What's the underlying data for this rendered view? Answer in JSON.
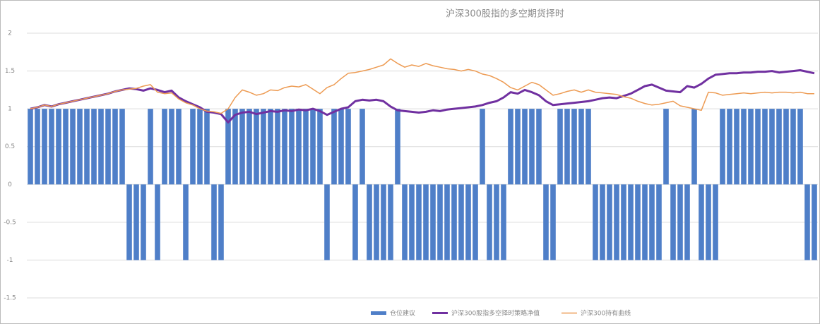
{
  "chart_data": {
    "type": "bar_line",
    "title": "沪深300股指的多空期货择时",
    "categories": [
      null,
      null,
      null,
      null,
      null,
      null,
      null,
      null,
      null,
      null,
      null,
      null,
      null,
      null,
      null,
      null,
      null,
      null,
      null,
      null,
      null,
      null,
      null,
      null,
      null,
      null,
      null,
      null,
      null,
      null,
      null,
      null,
      null,
      null,
      null,
      null,
      null,
      null,
      null,
      null,
      null,
      null,
      null,
      null,
      null,
      null,
      null,
      null,
      null,
      null,
      null,
      null,
      null,
      null,
      null,
      null,
      null,
      null,
      null,
      null,
      null,
      null,
      null,
      null,
      null,
      null,
      null,
      null,
      null,
      null,
      null,
      null,
      null,
      null,
      null,
      null,
      null,
      null,
      null,
      null,
      null,
      null,
      null,
      null,
      null,
      null,
      null,
      null,
      null,
      null,
      null,
      null,
      null,
      null,
      null,
      null,
      null,
      null,
      null,
      null,
      null,
      null,
      null,
      null,
      null,
      null,
      null,
      null,
      null,
      null,
      null,
      null
    ],
    "ylim": [
      -1.5,
      2
    ],
    "yticks": [
      -1.5,
      -1,
      -0.5,
      0,
      0.5,
      1,
      1.5,
      2
    ],
    "grid": true,
    "series": [
      {
        "name": "仓位建议",
        "kind": "bar",
        "color": "#4f7fc8",
        "values": [
          1,
          1,
          1,
          1,
          1,
          1,
          1,
          1,
          1,
          1,
          1,
          1,
          1,
          1,
          -1,
          -1,
          -1,
          1,
          -1,
          1,
          1,
          1,
          -1,
          1,
          1,
          1,
          -1,
          -1,
          1,
          1,
          1,
          1,
          1,
          1,
          1,
          1,
          1,
          1,
          1,
          1,
          1,
          1,
          -1,
          1,
          1,
          1,
          -1,
          1,
          -1,
          -1,
          -1,
          -1,
          1,
          -1,
          -1,
          -1,
          -1,
          -1,
          -1,
          -1,
          -1,
          -1,
          -1,
          -1,
          1,
          -1,
          -1,
          -1,
          1,
          1,
          1,
          1,
          1,
          -1,
          -1,
          1,
          1,
          1,
          1,
          1,
          -1,
          -1,
          -1,
          -1,
          -1,
          -1,
          -1,
          -1,
          -1,
          -1,
          1,
          -1,
          -1,
          -1,
          1,
          -1,
          -1,
          -1,
          1,
          1,
          1,
          1,
          1,
          1,
          1,
          1,
          1,
          1,
          1,
          1,
          -1,
          -1
        ]
      },
      {
        "name": "沪深300股指多空择时策略净值",
        "kind": "line",
        "color": "#7030a0",
        "values": [
          1.0,
          1.02,
          1.05,
          1.03,
          1.06,
          1.08,
          1.1,
          1.12,
          1.14,
          1.16,
          1.18,
          1.2,
          1.23,
          1.25,
          1.27,
          1.26,
          1.24,
          1.27,
          1.25,
          1.22,
          1.24,
          1.15,
          1.1,
          1.06,
          1.02,
          0.96,
          0.95,
          0.93,
          0.82,
          0.92,
          0.95,
          0.96,
          0.93,
          0.95,
          0.97,
          0.96,
          0.98,
          0.97,
          0.99,
          0.98,
          1.0,
          0.97,
          0.92,
          0.96,
          1.0,
          1.02,
          1.1,
          1.12,
          1.11,
          1.12,
          1.1,
          1.03,
          0.98,
          0.97,
          0.96,
          0.95,
          0.96,
          0.98,
          0.97,
          0.99,
          1.0,
          1.01,
          1.02,
          1.03,
          1.05,
          1.08,
          1.1,
          1.15,
          1.22,
          1.2,
          1.25,
          1.22,
          1.18,
          1.1,
          1.05,
          1.06,
          1.07,
          1.08,
          1.09,
          1.1,
          1.12,
          1.14,
          1.15,
          1.14,
          1.17,
          1.2,
          1.25,
          1.3,
          1.32,
          1.28,
          1.24,
          1.23,
          1.22,
          1.3,
          1.28,
          1.33,
          1.4,
          1.45,
          1.46,
          1.47,
          1.47,
          1.48,
          1.48,
          1.49,
          1.49,
          1.5,
          1.48,
          1.49,
          1.5,
          1.51,
          1.49,
          1.47
        ]
      },
      {
        "name": "沪深300持有曲线",
        "kind": "line",
        "color": "#ed9b53",
        "values": [
          1.0,
          1.02,
          1.05,
          1.03,
          1.06,
          1.08,
          1.1,
          1.12,
          1.14,
          1.16,
          1.18,
          1.2,
          1.23,
          1.25,
          1.26,
          1.27,
          1.3,
          1.32,
          1.22,
          1.2,
          1.21,
          1.13,
          1.08,
          1.05,
          1.0,
          0.97,
          0.96,
          0.94,
          1.0,
          1.15,
          1.25,
          1.22,
          1.18,
          1.2,
          1.25,
          1.24,
          1.28,
          1.3,
          1.29,
          1.32,
          1.26,
          1.2,
          1.28,
          1.32,
          1.4,
          1.47,
          1.48,
          1.5,
          1.52,
          1.55,
          1.58,
          1.66,
          1.6,
          1.55,
          1.58,
          1.56,
          1.6,
          1.57,
          1.55,
          1.53,
          1.52,
          1.5,
          1.52,
          1.5,
          1.46,
          1.44,
          1.4,
          1.35,
          1.28,
          1.25,
          1.3,
          1.35,
          1.32,
          1.25,
          1.18,
          1.2,
          1.23,
          1.25,
          1.22,
          1.25,
          1.22,
          1.21,
          1.2,
          1.19,
          1.16,
          1.14,
          1.1,
          1.07,
          1.05,
          1.06,
          1.08,
          1.1,
          1.04,
          1.02,
          1.0,
          0.98,
          1.22,
          1.21,
          1.18,
          1.19,
          1.2,
          1.21,
          1.2,
          1.21,
          1.22,
          1.21,
          1.22,
          1.22,
          1.21,
          1.22,
          1.2,
          1.2
        ]
      }
    ]
  }
}
